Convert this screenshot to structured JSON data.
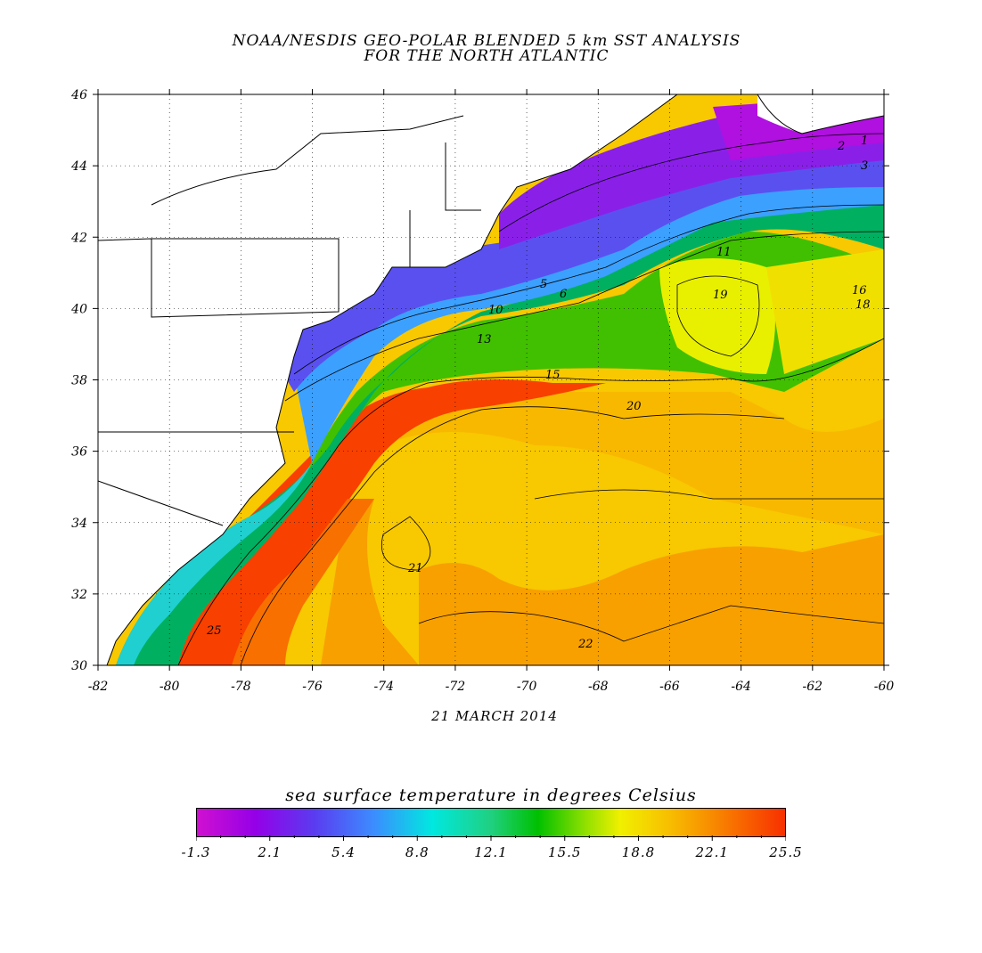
{
  "title": {
    "line1": "NOAA/NESDIS GEO-POLAR BLENDED 5 km SST ANALYSIS",
    "line2": "FOR THE NORTH ATLANTIC"
  },
  "date": "21 MARCH 2014",
  "map": {
    "lon_range": [
      -82,
      -60
    ],
    "lat_range": [
      30,
      46
    ],
    "x_ticks": [
      "-82",
      "-80",
      "-78",
      "-76",
      "-74",
      "-72",
      "-70",
      "-68",
      "-66",
      "-64",
      "-62",
      "-60"
    ],
    "y_ticks": [
      "30",
      "32",
      "34",
      "36",
      "38",
      "40",
      "42",
      "44",
      "46"
    ],
    "gridlines": "dotted",
    "contour_labels": [
      "1",
      "2",
      "3",
      "5",
      "6",
      "10",
      "11",
      "13",
      "15",
      "16",
      "18",
      "19",
      "20",
      "21",
      "22",
      "25"
    ]
  },
  "colorbar": {
    "title": "sea surface temperature in degrees Celsius",
    "labels": [
      "-1.3",
      "2.1",
      "5.4",
      "8.8",
      "12.1",
      "15.5",
      "18.8",
      "22.1",
      "25.5"
    ],
    "colors": [
      "#d010d0",
      "#9400e8",
      "#5a3cf0",
      "#3c8cff",
      "#00e8e0",
      "#20d080",
      "#00c000",
      "#90e000",
      "#f0f000",
      "#f8c000",
      "#f88800",
      "#f83000"
    ]
  }
}
